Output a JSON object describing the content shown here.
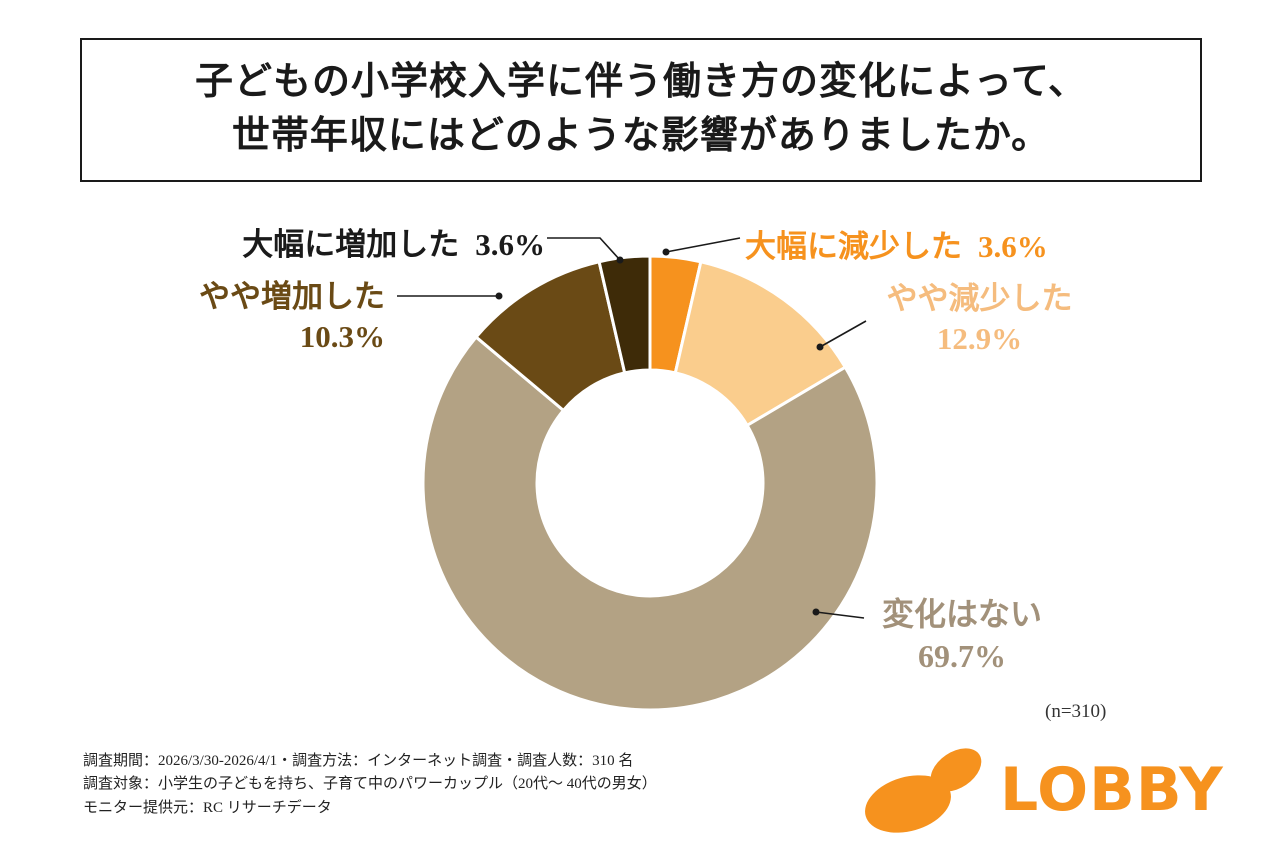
{
  "chart_data": {
    "type": "pie",
    "subtype": "donut",
    "title_lines": [
      "子どもの小学校入学に伴う働き方の変化によって、",
      "世帯年収にはどのような影響がありましたか。"
    ],
    "n_label": "(n=310)",
    "start_angle_deg": 0,
    "direction": "clockwise",
    "donut_hole_ratio": 0.5,
    "segments": [
      {
        "label": "大幅に減少した",
        "value": 3.6,
        "percent_label": "3.6%",
        "color": "#F6921E",
        "text_color": "#F6921E"
      },
      {
        "label": "やや減少した",
        "value": 12.9,
        "percent_label": "12.9%",
        "color": "#FACD8D",
        "text_color": "#F5BC7E"
      },
      {
        "label": "変化はない",
        "value": 69.7,
        "percent_label": "69.7%",
        "color": "#B3A284",
        "text_color": "#A2917A"
      },
      {
        "label": "やや増加した",
        "value": 10.3,
        "percent_label": "10.3%",
        "color": "#6A4A15",
        "text_color": "#6A4A15"
      },
      {
        "label": "大幅に増加した",
        "value": 3.6,
        "percent_label": "3.6%",
        "color": "#3E2B08",
        "text_color": "#1A1A1A"
      }
    ]
  },
  "footer": {
    "lines": [
      "調査期間：2026/3/30-2026/4/1・調査方法：インターネット調査・調査人数：310 名",
      "調査対象：小学生の子どもを持ち、子育て中のパワーカップル（20代〜 40代の男女）",
      "モニター提供元：RC リサーチデータ"
    ]
  },
  "logo": {
    "text": "LOBBY",
    "color": "#F6921E",
    "icon": "bean-sprout-icon"
  }
}
